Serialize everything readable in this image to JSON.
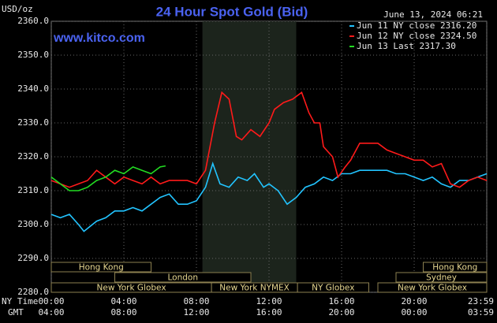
{
  "chart_data": {
    "type": "line",
    "title": "24 Hour Spot Gold (Bid)",
    "timestamp": "June 13, 2024 06:21",
    "watermark": "www.kitco.com",
    "y_label": "USD/oz",
    "x_label": "NY Time",
    "x2_label": "GMT",
    "xlim": [
      0,
      24
    ],
    "ylim": [
      2280,
      2360
    ],
    "xticks": [
      {
        "value": 0,
        "label": "00:00"
      },
      {
        "value": 4,
        "label": "04:00"
      },
      {
        "value": 8,
        "label": "08:00"
      },
      {
        "value": 12,
        "label": "12:00"
      },
      {
        "value": 16,
        "label": "16:00"
      },
      {
        "value": 20,
        "label": "20:00"
      },
      {
        "value": 24,
        "label": "23:59"
      }
    ],
    "x2ticks": [
      {
        "value": 0,
        "label": "04:00"
      },
      {
        "value": 4,
        "label": "08:00"
      },
      {
        "value": 8,
        "label": "12:00"
      },
      {
        "value": 12,
        "label": "16:00"
      },
      {
        "value": 16,
        "label": "20:00"
      },
      {
        "value": 20,
        "label": "00:00"
      },
      {
        "value": 24,
        "label": "03:59"
      }
    ],
    "yticks": [
      {
        "value": 2280,
        "label": "2280.0"
      },
      {
        "value": 2290,
        "label": "2290.0"
      },
      {
        "value": 2300,
        "label": "2300.0"
      },
      {
        "value": 2310,
        "label": "2310.0"
      },
      {
        "value": 2320,
        "label": "2320.0"
      },
      {
        "value": 2330,
        "label": "2330.0"
      },
      {
        "value": 2340,
        "label": "2340.0"
      },
      {
        "value": 2350,
        "label": "2350.0"
      },
      {
        "value": 2360,
        "label": "2360.0"
      }
    ],
    "grid": true,
    "legend": "upper right",
    "highlight": [
      8.33,
      13.5
    ],
    "series": [
      {
        "name": "Jun 11 NY close 2316.20",
        "color": "#22c4ff",
        "x": [
          0,
          0.5,
          1,
          1.5,
          1.8,
          2.5,
          3,
          3.5,
          4,
          4.5,
          5,
          5.5,
          6,
          6.5,
          7,
          7.5,
          8,
          8.5,
          8.9,
          9.3,
          9.8,
          10.3,
          10.8,
          11.2,
          11.7,
          12,
          12.5,
          13,
          13.5,
          14,
          14.5,
          15,
          15.5,
          16,
          16.5,
          17,
          17.5,
          18,
          18.5,
          19,
          19.5,
          20,
          20.5,
          21,
          21.5,
          22,
          22.5,
          23,
          23.5,
          24
        ],
        "values": [
          2303,
          2302,
          2303,
          2300,
          2298,
          2301,
          2302,
          2304,
          2304,
          2305,
          2304,
          2306,
          2308,
          2309,
          2306,
          2306,
          2307,
          2311,
          2318,
          2312,
          2311,
          2314,
          2313,
          2315,
          2311,
          2312,
          2310,
          2306,
          2308,
          2311,
          2312,
          2314,
          2313,
          2315,
          2315,
          2316,
          2316,
          2316,
          2316,
          2315,
          2315,
          2314,
          2313,
          2314,
          2312,
          2311,
          2313,
          2313,
          2314,
          2315
        ]
      },
      {
        "name": "Jun 12 NY close 2324.50",
        "color": "#ff1a1a",
        "x": [
          0,
          0.5,
          1,
          1.5,
          2,
          2.5,
          3,
          3.5,
          4,
          4.5,
          5,
          5.5,
          6,
          6.5,
          7,
          7.5,
          8,
          8.5,
          9,
          9.4,
          9.8,
          10.2,
          10.5,
          11,
          11.5,
          12,
          12.3,
          12.8,
          13.3,
          13.8,
          14.2,
          14.5,
          14.8,
          15,
          15.5,
          15.8,
          16.2,
          16.5,
          17,
          17.5,
          18,
          18.5,
          19,
          19.5,
          20,
          20.5,
          21,
          21.5,
          22,
          22.5,
          23,
          23.5,
          24
        ],
        "values": [
          2313,
          2312,
          2311,
          2312,
          2313,
          2316,
          2314,
          2312,
          2314,
          2313,
          2312,
          2314,
          2312,
          2313,
          2313,
          2313,
          2312,
          2316,
          2330,
          2339,
          2337,
          2326,
          2325,
          2328,
          2326,
          2330,
          2334,
          2336,
          2337,
          2339,
          2333,
          2330,
          2330,
          2323,
          2320,
          2314,
          2317,
          2319,
          2324,
          2324,
          2324,
          2322,
          2321,
          2320,
          2319,
          2319,
          2317,
          2318,
          2312,
          2311,
          2313,
          2314,
          2313
        ]
      },
      {
        "name": "Jun 13 Last 2317.30",
        "color": "#22dd22",
        "x": [
          0,
          0.5,
          1,
          1.5,
          2,
          2.5,
          3,
          3.5,
          4,
          4.5,
          5,
          5.5,
          6,
          6.3
        ],
        "values": [
          2314,
          2312,
          2310,
          2310,
          2311,
          2313,
          2314,
          2316,
          2315,
          2317,
          2316,
          2315,
          2317,
          2317.3
        ]
      }
    ],
    "sessions": [
      [
        {
          "label": "Hong Kong",
          "start": 0,
          "end": 5.5
        },
        {
          "label": "Hong Kong",
          "start": 20.5,
          "end": 24
        }
      ],
      [
        {
          "label": "London",
          "start": 3.5,
          "end": 11
        },
        {
          "label": "Sydney",
          "start": 19,
          "end": 24
        }
      ],
      [
        {
          "label": "New York Globex",
          "start": 0,
          "end": 8.83
        },
        {
          "label": "New York NYMEX",
          "start": 8.83,
          "end": 13.57
        },
        {
          "label": "NY Globex",
          "start": 13.57,
          "end": 17.5
        },
        {
          "label": "New York Globex",
          "start": 18,
          "end": 24
        }
      ]
    ]
  }
}
